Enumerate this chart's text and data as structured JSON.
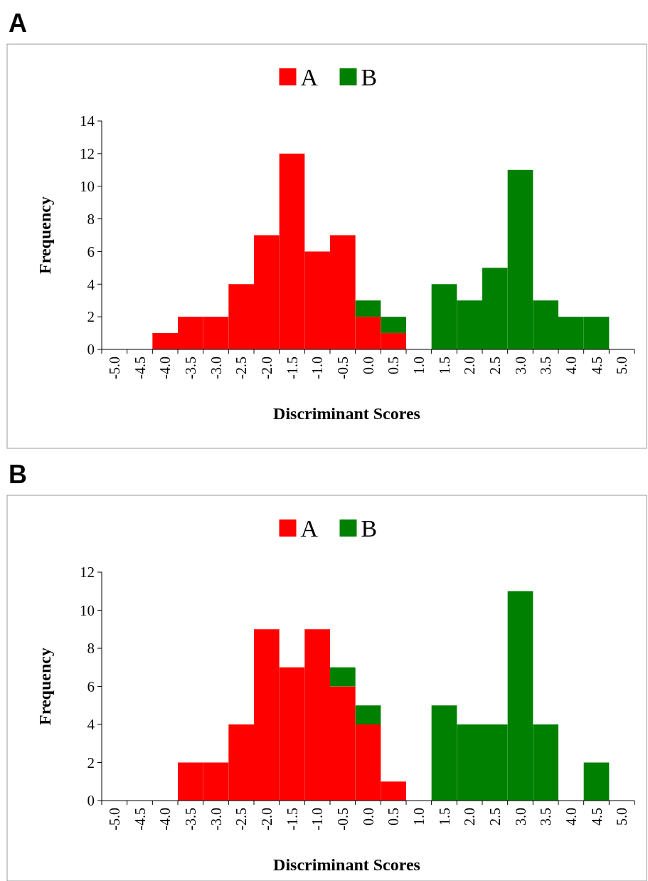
{
  "chart_data": [
    {
      "type": "bar",
      "title": "A",
      "stacked": true,
      "legend": "top",
      "xlabel": "Discriminant Scores",
      "ylabel": "Frequency",
      "ylim": [
        0,
        14
      ],
      "yticks": [
        0,
        2,
        4,
        6,
        8,
        10,
        12,
        14
      ],
      "categories": [
        "-5.0",
        "-4.5",
        "-4.0",
        "-3.5",
        "-3.0",
        "-2.5",
        "-2.0",
        "-1.5",
        "-1.0",
        "-0.5",
        "0.0",
        "0.5",
        "1.0",
        "1.5",
        "2.0",
        "2.5",
        "3.0",
        "3.5",
        "4.0",
        "4.5",
        "5.0"
      ],
      "series": [
        {
          "name": "A",
          "color": "#ff0000",
          "values": [
            0,
            0,
            1,
            2,
            2,
            4,
            7,
            12,
            6,
            7,
            2,
            1,
            0,
            0,
            0,
            0,
            0,
            0,
            0,
            0,
            0
          ]
        },
        {
          "name": "B",
          "color": "#008000",
          "values": [
            0,
            0,
            0,
            0,
            0,
            0,
            0,
            0,
            0,
            0,
            1,
            1,
            0,
            4,
            3,
            5,
            11,
            3,
            2,
            2,
            0
          ]
        }
      ]
    },
    {
      "type": "bar",
      "title": "B",
      "stacked": true,
      "legend": "top",
      "xlabel": "Discriminant Scores",
      "ylabel": "Frequency",
      "ylim": [
        0,
        12
      ],
      "yticks": [
        0,
        2,
        4,
        6,
        8,
        10,
        12
      ],
      "categories": [
        "-5.0",
        "-4.5",
        "-4.0",
        "-3.5",
        "-3.0",
        "-2.5",
        "-2.0",
        "-1.5",
        "-1.0",
        "-0.5",
        "0.0",
        "0.5",
        "1.0",
        "1.5",
        "2.0",
        "2.5",
        "3.0",
        "3.5",
        "4.0",
        "4.5",
        "5.0"
      ],
      "series": [
        {
          "name": "A",
          "color": "#ff0000",
          "values": [
            0,
            0,
            0,
            2,
            2,
            4,
            9,
            7,
            9,
            6,
            4,
            1,
            0,
            0,
            0,
            0,
            0,
            0,
            0,
            0,
            0
          ]
        },
        {
          "name": "B",
          "color": "#008000",
          "values": [
            0,
            0,
            0,
            0,
            0,
            0,
            0,
            0,
            0,
            1,
            1,
            0,
            0,
            5,
            4,
            4,
            11,
            4,
            0,
            2,
            0
          ]
        }
      ]
    }
  ]
}
